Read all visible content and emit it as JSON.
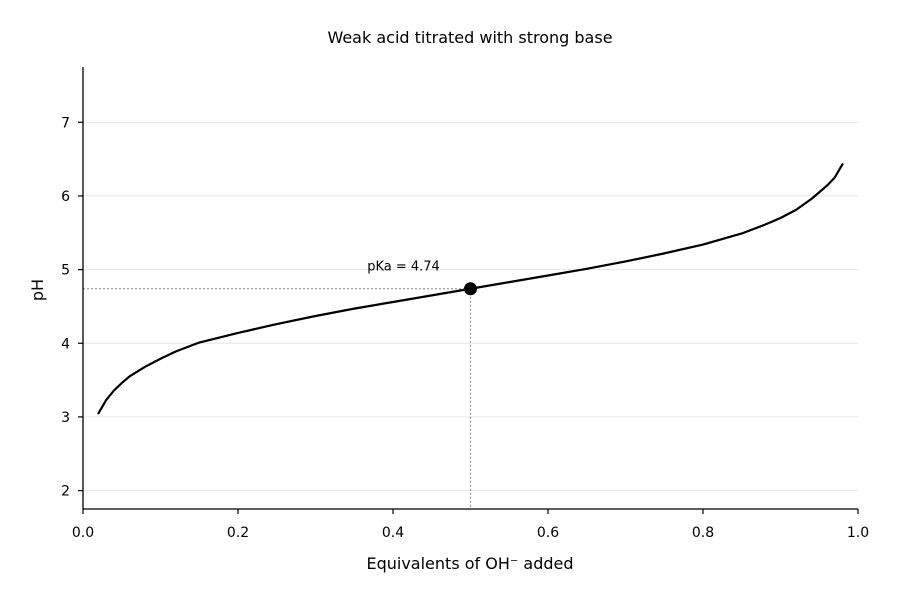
{
  "chart_data": {
    "type": "line",
    "title": "Weak acid titrated with strong base",
    "xlabel": "Equivalents of OH⁻ added",
    "ylabel": "pH",
    "xlim": [
      0.0,
      1.0
    ],
    "ylim": [
      1.75,
      7.75
    ],
    "x_ticks": [
      0.0,
      0.2,
      0.4,
      0.6,
      0.8,
      1.0
    ],
    "x_tick_labels": [
      "0.0",
      "0.2",
      "0.4",
      "0.6",
      "0.8",
      "1.0"
    ],
    "y_ticks": [
      2,
      3,
      4,
      5,
      6,
      7
    ],
    "y_tick_labels": [
      "2",
      "3",
      "4",
      "5",
      "6",
      "7"
    ],
    "grid": {
      "y": true,
      "x": false
    },
    "series": [
      {
        "color": "#000000",
        "x": [
          0.02,
          0.03,
          0.04,
          0.05,
          0.06,
          0.08,
          0.1,
          0.12,
          0.15,
          0.2,
          0.25,
          0.3,
          0.35,
          0.4,
          0.45,
          0.5,
          0.55,
          0.6,
          0.65,
          0.7,
          0.75,
          0.8,
          0.85,
          0.88,
          0.9,
          0.92,
          0.94,
          0.95,
          0.96,
          0.97,
          0.98
        ],
        "y": [
          3.05,
          3.23,
          3.36,
          3.46,
          3.55,
          3.68,
          3.79,
          3.89,
          4.01,
          4.14,
          4.26,
          4.37,
          4.47,
          4.56,
          4.65,
          4.74,
          4.83,
          4.92,
          5.01,
          5.11,
          5.22,
          5.34,
          5.49,
          5.61,
          5.7,
          5.81,
          5.96,
          6.05,
          6.14,
          6.25,
          6.43
        ]
      }
    ],
    "marker": {
      "x": 0.5,
      "y": 4.74,
      "color": "#000000"
    },
    "reference_lines": {
      "x": 0.5,
      "y": 4.74,
      "style": "dotted",
      "color": "#999999"
    },
    "annotations": [
      {
        "text": "pKa = 4.74",
        "x": 0.5,
        "y": 4.74
      }
    ]
  }
}
